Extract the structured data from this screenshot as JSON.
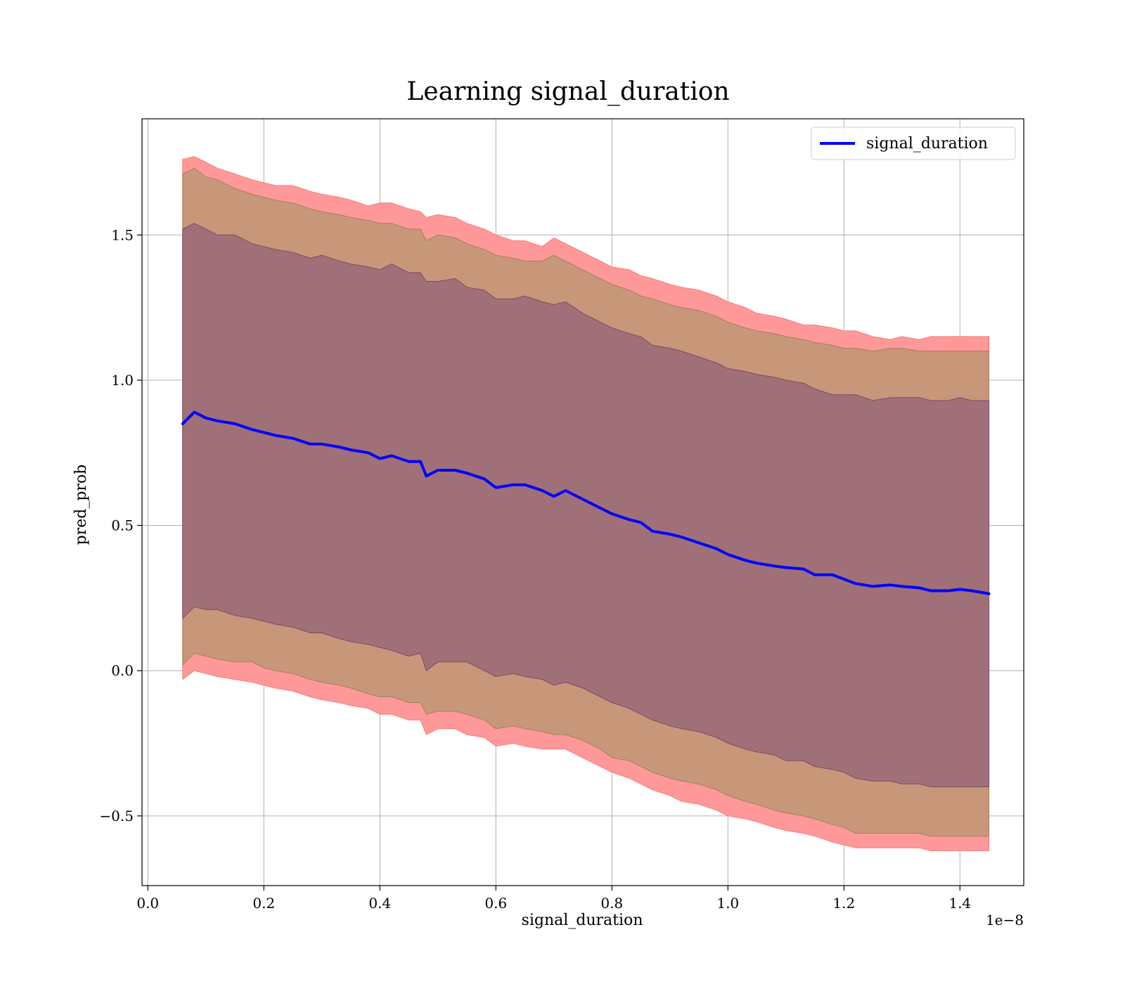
{
  "chart_data": {
    "type": "line",
    "title": "Learning signal_duration",
    "xlabel": "signal_duration",
    "ylabel": "pred_prob",
    "x_offset_label": "1e−8",
    "xlim": [
      -0.01,
      1.51
    ],
    "ylim": [
      -0.74,
      1.9
    ],
    "xticks": [
      0.0,
      0.2,
      0.4,
      0.6,
      0.8,
      1.0,
      1.2,
      1.4
    ],
    "xtick_labels": [
      "0.0",
      "0.2",
      "0.4",
      "0.6",
      "0.8",
      "1.0",
      "1.2",
      "1.4"
    ],
    "yticks": [
      -0.5,
      0.0,
      0.5,
      1.0,
      1.5
    ],
    "ytick_labels": [
      "−0.5",
      "0.0",
      "0.5",
      "1.0",
      "1.5"
    ],
    "grid": true,
    "legend_position": "top-right",
    "colors": {
      "line": "#0000ff",
      "band_outer": "#ff9999",
      "band_middle": "#c89678",
      "band_inner": "#a07078",
      "grid": "#b0b0b0"
    },
    "series": [
      {
        "name": "signal_duration",
        "x": [
          0.06,
          0.08,
          0.1,
          0.12,
          0.15,
          0.18,
          0.2,
          0.22,
          0.25,
          0.28,
          0.3,
          0.33,
          0.35,
          0.38,
          0.4,
          0.42,
          0.45,
          0.47,
          0.48,
          0.5,
          0.53,
          0.55,
          0.58,
          0.6,
          0.63,
          0.65,
          0.68,
          0.7,
          0.72,
          0.75,
          0.78,
          0.8,
          0.83,
          0.85,
          0.87,
          0.9,
          0.92,
          0.95,
          0.98,
          1.0,
          1.03,
          1.05,
          1.08,
          1.1,
          1.13,
          1.15,
          1.18,
          1.2,
          1.22,
          1.25,
          1.28,
          1.3,
          1.33,
          1.35,
          1.38,
          1.4,
          1.42,
          1.45
        ],
        "y": [
          0.85,
          0.89,
          0.87,
          0.86,
          0.85,
          0.83,
          0.82,
          0.81,
          0.8,
          0.78,
          0.78,
          0.77,
          0.76,
          0.75,
          0.73,
          0.74,
          0.72,
          0.72,
          0.67,
          0.69,
          0.69,
          0.68,
          0.66,
          0.63,
          0.64,
          0.64,
          0.62,
          0.6,
          0.62,
          0.59,
          0.56,
          0.54,
          0.52,
          0.51,
          0.48,
          0.47,
          0.46,
          0.44,
          0.42,
          0.4,
          0.38,
          0.37,
          0.36,
          0.355,
          0.35,
          0.33,
          0.33,
          0.315,
          0.3,
          0.29,
          0.295,
          0.29,
          0.285,
          0.275,
          0.275,
          0.28,
          0.275,
          0.265
        ],
        "band_outer_upper": [
          1.76,
          1.77,
          1.75,
          1.73,
          1.71,
          1.69,
          1.68,
          1.67,
          1.67,
          1.65,
          1.64,
          1.63,
          1.62,
          1.6,
          1.61,
          1.61,
          1.59,
          1.58,
          1.56,
          1.57,
          1.56,
          1.54,
          1.52,
          1.5,
          1.48,
          1.48,
          1.46,
          1.49,
          1.47,
          1.44,
          1.41,
          1.39,
          1.38,
          1.36,
          1.35,
          1.33,
          1.32,
          1.31,
          1.29,
          1.27,
          1.25,
          1.23,
          1.22,
          1.21,
          1.19,
          1.19,
          1.18,
          1.17,
          1.17,
          1.15,
          1.14,
          1.15,
          1.14,
          1.15,
          1.15,
          1.15,
          1.15,
          1.15
        ],
        "band_middle_upper": [
          1.71,
          1.73,
          1.7,
          1.69,
          1.66,
          1.64,
          1.63,
          1.62,
          1.61,
          1.59,
          1.58,
          1.57,
          1.56,
          1.55,
          1.54,
          1.54,
          1.52,
          1.52,
          1.48,
          1.5,
          1.49,
          1.47,
          1.45,
          1.43,
          1.42,
          1.41,
          1.41,
          1.43,
          1.41,
          1.38,
          1.35,
          1.33,
          1.31,
          1.29,
          1.28,
          1.26,
          1.25,
          1.24,
          1.22,
          1.2,
          1.18,
          1.17,
          1.16,
          1.15,
          1.14,
          1.13,
          1.12,
          1.11,
          1.11,
          1.1,
          1.11,
          1.11,
          1.1,
          1.1,
          1.1,
          1.1,
          1.1,
          1.1
        ],
        "band_inner_upper": [
          1.52,
          1.54,
          1.52,
          1.5,
          1.5,
          1.47,
          1.46,
          1.45,
          1.44,
          1.42,
          1.43,
          1.41,
          1.4,
          1.39,
          1.38,
          1.4,
          1.37,
          1.37,
          1.34,
          1.34,
          1.35,
          1.32,
          1.31,
          1.28,
          1.28,
          1.29,
          1.27,
          1.26,
          1.27,
          1.23,
          1.2,
          1.18,
          1.16,
          1.15,
          1.12,
          1.11,
          1.1,
          1.08,
          1.06,
          1.04,
          1.03,
          1.02,
          1.01,
          1.0,
          0.99,
          0.97,
          0.95,
          0.95,
          0.95,
          0.93,
          0.94,
          0.94,
          0.94,
          0.93,
          0.93,
          0.94,
          0.93,
          0.93
        ],
        "band_inner_lower": [
          0.18,
          0.22,
          0.21,
          0.21,
          0.19,
          0.18,
          0.17,
          0.16,
          0.15,
          0.13,
          0.13,
          0.11,
          0.1,
          0.09,
          0.08,
          0.07,
          0.05,
          0.06,
          0.0,
          0.03,
          0.03,
          0.03,
          0.0,
          -0.02,
          -0.01,
          -0.02,
          -0.03,
          -0.05,
          -0.04,
          -0.06,
          -0.09,
          -0.11,
          -0.13,
          -0.15,
          -0.17,
          -0.19,
          -0.2,
          -0.21,
          -0.23,
          -0.25,
          -0.27,
          -0.28,
          -0.29,
          -0.31,
          -0.31,
          -0.33,
          -0.34,
          -0.35,
          -0.37,
          -0.38,
          -0.38,
          -0.39,
          -0.39,
          -0.4,
          -0.4,
          -0.4,
          -0.4,
          -0.4
        ],
        "band_middle_lower": [
          0.02,
          0.06,
          0.05,
          0.04,
          0.03,
          0.03,
          0.01,
          0.0,
          -0.01,
          -0.03,
          -0.04,
          -0.05,
          -0.06,
          -0.08,
          -0.09,
          -0.09,
          -0.11,
          -0.11,
          -0.15,
          -0.14,
          -0.14,
          -0.15,
          -0.17,
          -0.2,
          -0.19,
          -0.2,
          -0.21,
          -0.22,
          -0.22,
          -0.24,
          -0.27,
          -0.3,
          -0.31,
          -0.33,
          -0.35,
          -0.37,
          -0.38,
          -0.39,
          -0.41,
          -0.43,
          -0.45,
          -0.46,
          -0.48,
          -0.49,
          -0.5,
          -0.51,
          -0.53,
          -0.54,
          -0.56,
          -0.56,
          -0.56,
          -0.56,
          -0.56,
          -0.57,
          -0.57,
          -0.57,
          -0.57,
          -0.57
        ],
        "band_outer_lower": [
          -0.03,
          0.0,
          -0.01,
          -0.02,
          -0.03,
          -0.04,
          -0.05,
          -0.06,
          -0.07,
          -0.09,
          -0.1,
          -0.11,
          -0.12,
          -0.13,
          -0.15,
          -0.15,
          -0.17,
          -0.17,
          -0.22,
          -0.2,
          -0.2,
          -0.22,
          -0.23,
          -0.26,
          -0.25,
          -0.26,
          -0.27,
          -0.27,
          -0.27,
          -0.3,
          -0.33,
          -0.35,
          -0.37,
          -0.39,
          -0.41,
          -0.43,
          -0.45,
          -0.46,
          -0.48,
          -0.5,
          -0.51,
          -0.52,
          -0.54,
          -0.55,
          -0.56,
          -0.57,
          -0.59,
          -0.6,
          -0.61,
          -0.61,
          -0.61,
          -0.61,
          -0.61,
          -0.62,
          -0.62,
          -0.62,
          -0.62,
          -0.62
        ]
      }
    ]
  }
}
